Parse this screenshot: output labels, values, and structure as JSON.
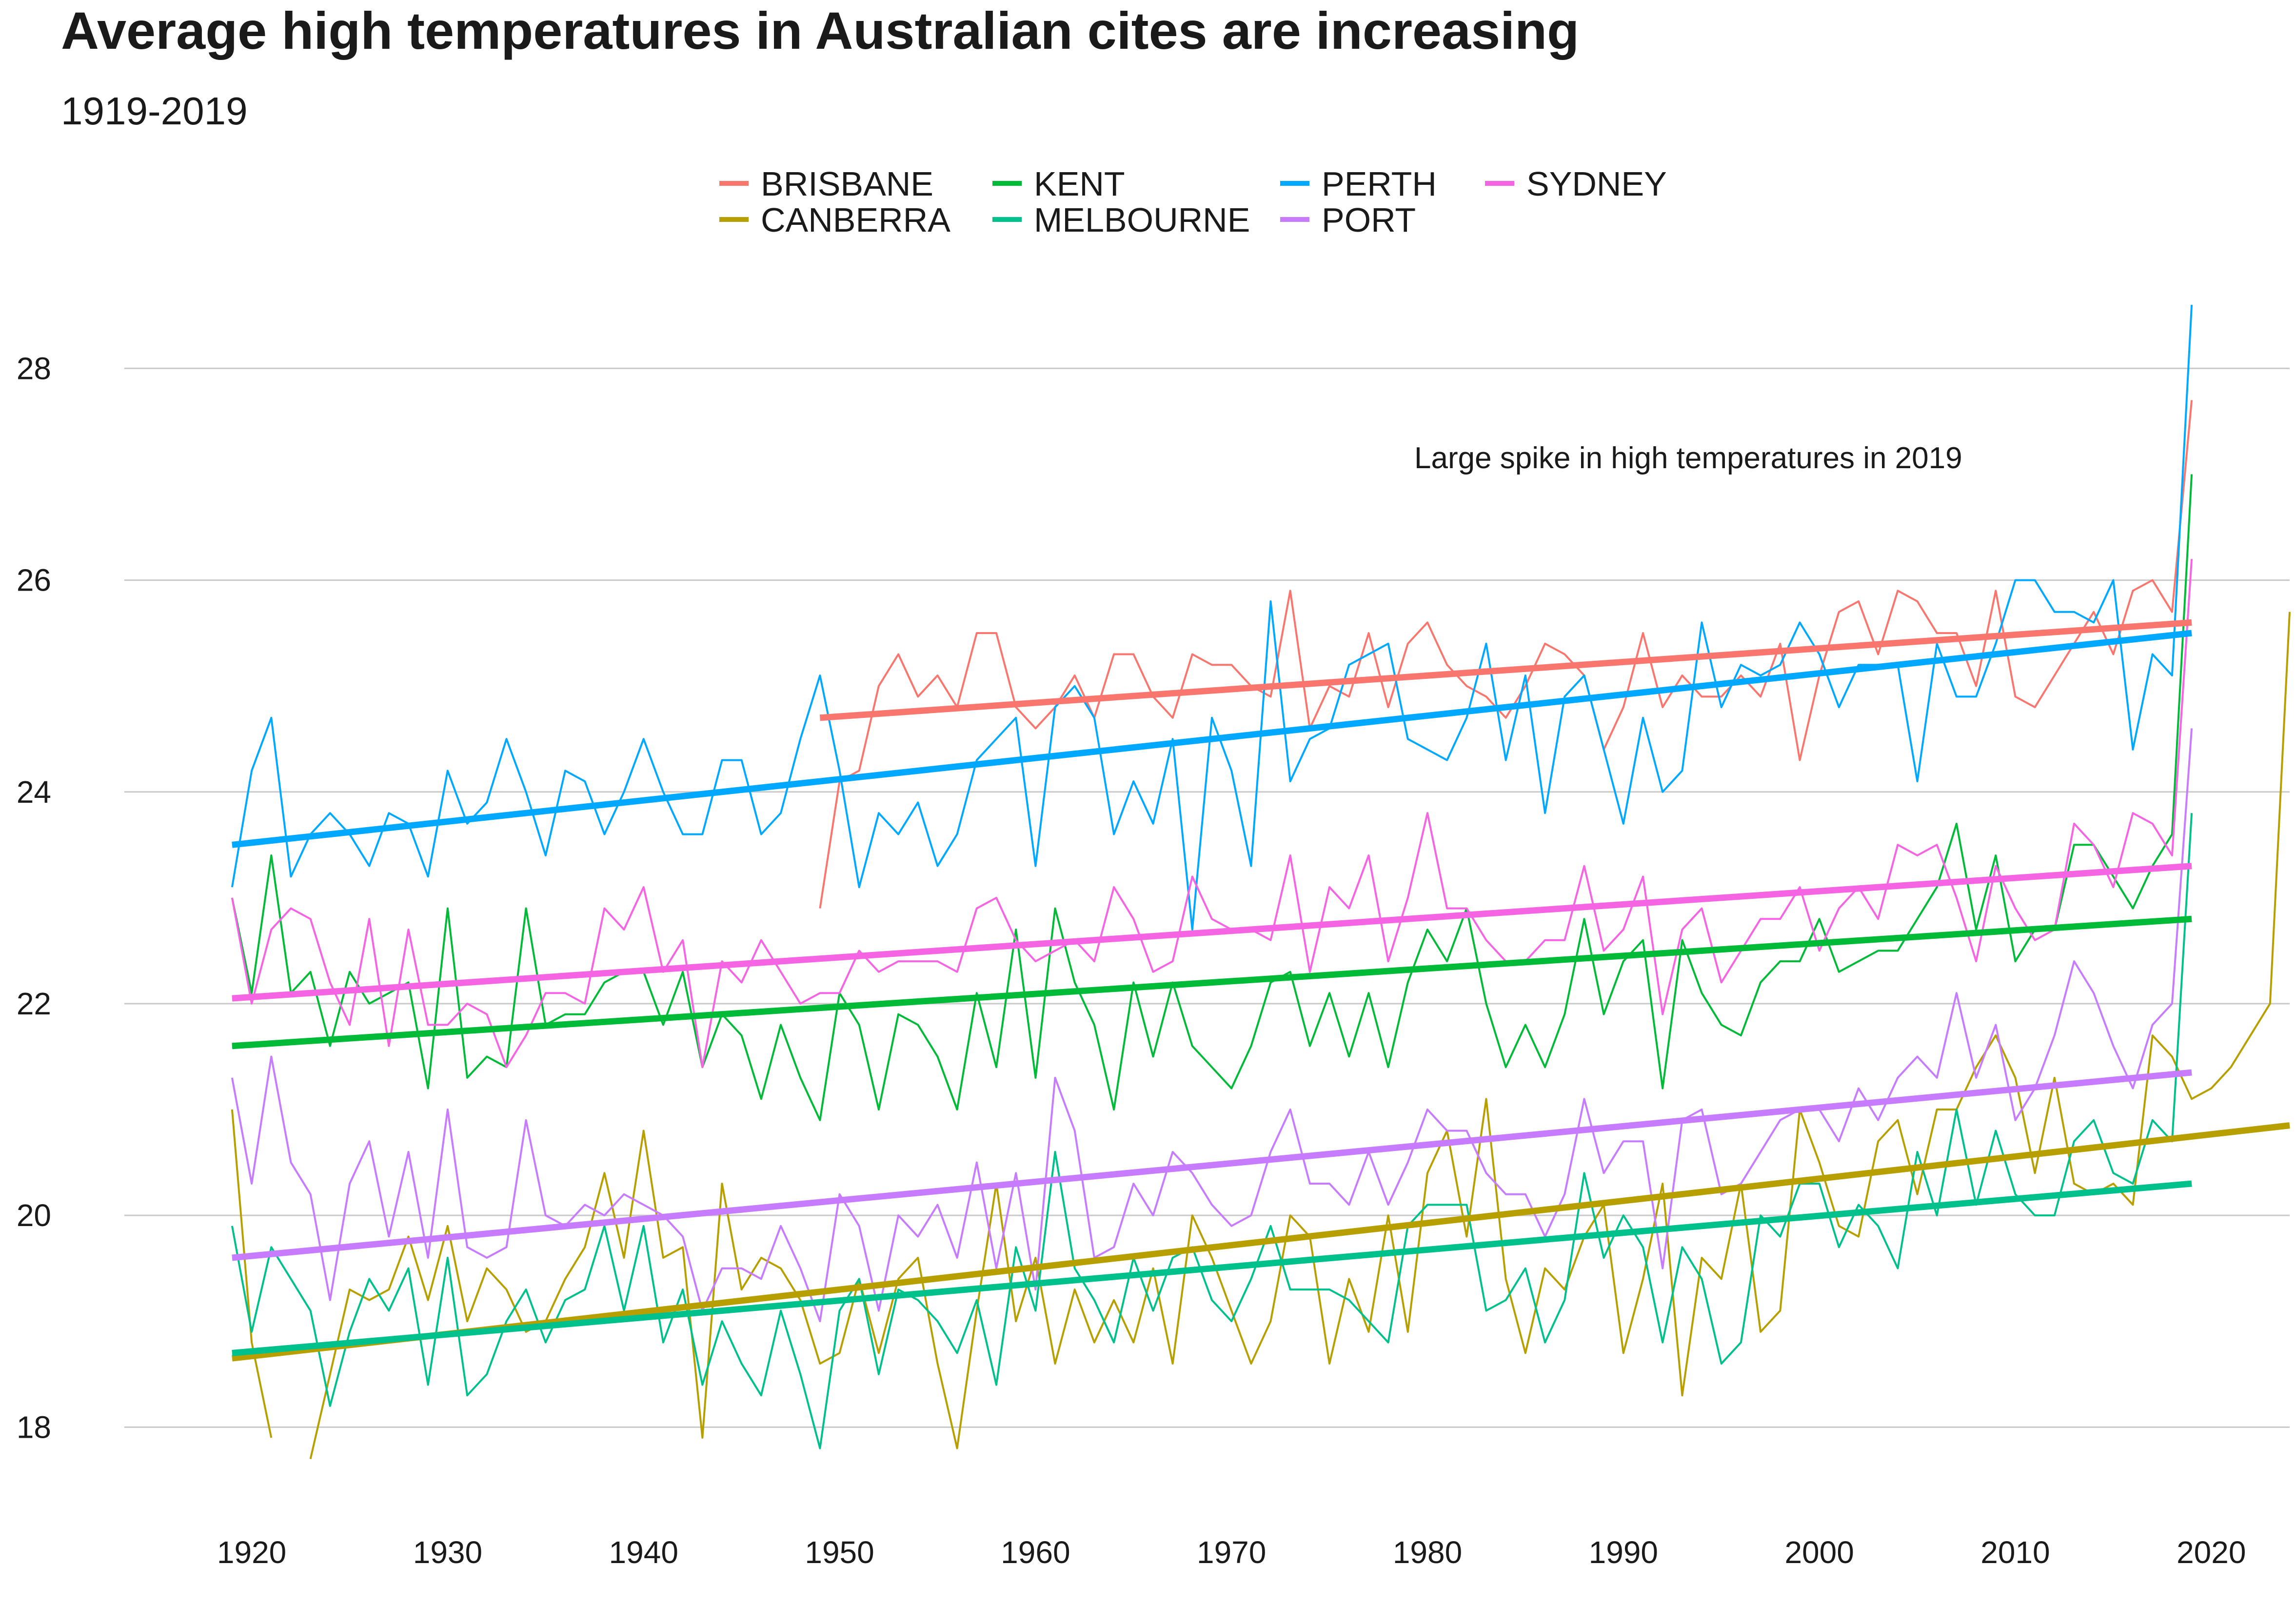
{
  "chart_data": {
    "type": "line",
    "title": "Average high temperatures in Australian cites are increasing",
    "subtitle": "1919-2019",
    "xlabel": "",
    "ylabel": "",
    "xlim": [
      1914,
      2024
    ],
    "ylim": [
      17.2,
      28.9
    ],
    "x_ticks": [
      1920,
      1930,
      1940,
      1950,
      1960,
      1970,
      1980,
      1990,
      2000,
      2010,
      2020
    ],
    "y_ticks": [
      18,
      20,
      22,
      24,
      26,
      28
    ],
    "grid": "horizontal",
    "legend_position": "top",
    "annotation": "Large spike in high temperatures in 2019",
    "series": [
      {
        "name": "BRISBANE",
        "color": "#F8766D",
        "start_year": 1949,
        "values": [
          22.9,
          24.1,
          24.2,
          25.0,
          25.3,
          24.9,
          25.1,
          24.8,
          25.5,
          25.5,
          24.8,
          24.6,
          24.8,
          25.1,
          24.7,
          25.3,
          25.3,
          24.9,
          24.7,
          25.3,
          25.2,
          25.2,
          25.0,
          24.9,
          25.9,
          24.6,
          25.0,
          24.9,
          25.5,
          24.8,
          25.4,
          25.6,
          25.2,
          25.0,
          24.9,
          24.7,
          25.0,
          25.4,
          25.3,
          25.1,
          24.4,
          24.8,
          25.5,
          24.8,
          25.1,
          24.9,
          24.9,
          25.1,
          24.9,
          25.4,
          24.3,
          25.1,
          25.7,
          25.8,
          25.3,
          25.9,
          25.8,
          25.5,
          25.5,
          25.0,
          25.9,
          24.9,
          24.8,
          25.1,
          25.4,
          25.7,
          25.3,
          25.9,
          26.0,
          25.7,
          27.7
        ],
        "trend": [
          24.7,
          25.6
        ]
      },
      {
        "name": "CANBERRA",
        "color": "#B79F00",
        "start_year": 1919,
        "values": [
          21.0,
          18.8,
          17.9,
          null,
          17.7,
          18.5,
          19.3,
          19.2,
          19.3,
          19.8,
          19.2,
          19.9,
          19.0,
          19.5,
          19.3,
          18.9,
          19.0,
          19.4,
          19.7,
          20.4,
          19.6,
          20.8,
          19.6,
          19.7,
          17.9,
          20.3,
          19.3,
          19.6,
          19.5,
          19.2,
          18.6,
          18.7,
          19.4,
          18.7,
          19.4,
          19.6,
          18.6,
          17.8,
          19.1,
          20.3,
          19.0,
          19.6,
          18.6,
          19.3,
          18.8,
          19.2,
          18.8,
          19.5,
          18.6,
          20.0,
          19.6,
          19.1,
          18.6,
          19.0,
          20.0,
          19.8,
          18.6,
          19.4,
          18.9,
          20.0,
          18.9,
          20.4,
          20.8,
          19.8,
          21.1,
          19.4,
          18.7,
          19.5,
          19.3,
          19.8,
          20.1,
          18.7,
          19.4,
          20.3,
          18.3,
          19.6,
          19.4,
          20.3,
          18.9,
          19.1,
          21.0,
          20.5,
          19.9,
          19.8,
          20.7,
          20.9,
          20.2,
          21.0,
          21.0,
          21.4,
          21.7,
          21.3,
          20.4,
          21.3,
          20.3,
          20.2,
          20.3,
          20.1,
          21.7,
          21.5,
          21.1,
          21.2,
          21.4,
          21.7,
          22.0,
          25.7
        ],
        "trend": [
          18.65,
          20.85
        ]
      },
      {
        "name": "KENT",
        "color": "#00BA38",
        "start_year": 1919,
        "values": [
          23.0,
          22.1,
          23.4,
          22.1,
          22.3,
          21.6,
          22.3,
          22.0,
          22.1,
          22.2,
          21.2,
          22.9,
          21.3,
          21.5,
          21.4,
          22.9,
          21.8,
          21.9,
          21.9,
          22.2,
          22.3,
          22.3,
          21.8,
          22.3,
          21.4,
          21.9,
          21.7,
          21.1,
          21.8,
          21.3,
          20.9,
          22.1,
          21.8,
          21.0,
          21.9,
          21.8,
          21.5,
          21.0,
          22.1,
          21.4,
          22.7,
          21.3,
          22.9,
          22.2,
          21.8,
          21.0,
          22.2,
          21.5,
          22.2,
          21.6,
          21.4,
          21.2,
          21.6,
          22.2,
          22.3,
          21.6,
          22.1,
          21.5,
          22.1,
          21.4,
          22.2,
          22.7,
          22.4,
          22.9,
          22.0,
          21.4,
          21.8,
          21.4,
          21.9,
          22.8,
          21.9,
          22.4,
          22.6,
          21.2,
          22.6,
          22.1,
          21.8,
          21.7,
          22.2,
          22.4,
          22.4,
          22.8,
          22.3,
          22.4,
          22.5,
          22.5,
          22.8,
          23.1,
          23.7,
          22.7,
          23.4,
          22.4,
          22.7,
          22.7,
          23.5,
          23.5,
          23.2,
          22.9,
          23.3,
          23.6,
          27.0
        ],
        "trend": [
          21.6,
          22.8
        ]
      },
      {
        "name": "MELBOURNE",
        "color": "#00C08B",
        "start_year": 1919,
        "values": [
          19.9,
          18.9,
          19.7,
          19.4,
          19.1,
          18.2,
          18.9,
          19.4,
          19.1,
          19.5,
          18.4,
          19.6,
          18.3,
          18.5,
          19.0,
          19.3,
          18.8,
          19.2,
          19.3,
          19.9,
          19.1,
          19.9,
          18.8,
          19.3,
          18.4,
          19.0,
          18.6,
          18.3,
          19.1,
          18.5,
          17.8,
          19.1,
          19.4,
          18.5,
          19.3,
          19.2,
          19.0,
          18.7,
          19.2,
          18.4,
          19.7,
          19.1,
          20.6,
          19.5,
          19.2,
          18.8,
          19.6,
          19.1,
          19.6,
          19.7,
          19.2,
          19.0,
          19.4,
          19.9,
          19.3,
          19.3,
          19.3,
          19.2,
          19.0,
          18.8,
          19.9,
          20.1,
          20.1,
          20.1,
          19.1,
          19.2,
          19.5,
          18.8,
          19.2,
          20.4,
          19.6,
          20.0,
          19.7,
          18.8,
          19.7,
          19.4,
          18.6,
          18.8,
          20.0,
          19.8,
          20.3,
          20.3,
          19.7,
          20.1,
          19.9,
          19.5,
          20.6,
          20.0,
          21.0,
          20.1,
          20.8,
          20.2,
          20.0,
          20.0,
          20.7,
          20.9,
          20.4,
          20.3,
          20.9,
          20.7,
          23.8
        ],
        "trend": [
          18.7,
          20.3
        ]
      },
      {
        "name": "PERTH",
        "color": "#00A9FF",
        "start_year": 1919,
        "values": [
          23.1,
          24.2,
          24.7,
          23.2,
          23.6,
          23.8,
          23.6,
          23.3,
          23.8,
          23.7,
          23.2,
          24.2,
          23.7,
          23.9,
          24.5,
          24.0,
          23.4,
          24.2,
          24.1,
          23.6,
          24.0,
          24.5,
          24.0,
          23.6,
          23.6,
          24.3,
          24.3,
          23.6,
          23.8,
          24.5,
          25.1,
          24.2,
          23.1,
          23.8,
          23.6,
          23.9,
          23.3,
          23.6,
          24.3,
          24.5,
          24.7,
          23.3,
          24.8,
          25.0,
          24.7,
          23.6,
          24.1,
          23.7,
          24.5,
          22.7,
          24.7,
          24.2,
          23.3,
          25.8,
          24.1,
          24.5,
          24.6,
          25.2,
          25.3,
          25.4,
          24.5,
          24.4,
          24.3,
          24.7,
          25.4,
          24.3,
          25.1,
          23.8,
          24.9,
          25.1,
          24.4,
          23.7,
          24.7,
          24.0,
          24.2,
          25.6,
          24.8,
          25.2,
          25.1,
          25.2,
          25.6,
          25.3,
          24.8,
          25.2,
          25.2,
          25.2,
          24.1,
          25.4,
          24.9,
          24.9,
          25.4,
          26.0,
          26.0,
          25.7,
          25.7,
          25.6,
          26.0,
          24.4,
          25.3,
          25.1,
          28.6
        ],
        "trend": [
          23.5,
          25.5
        ]
      },
      {
        "name": "PORT",
        "color": "#C77CFF",
        "start_year": 1919,
        "values": [
          21.3,
          20.3,
          21.5,
          20.5,
          20.2,
          19.2,
          20.3,
          20.7,
          19.8,
          20.6,
          19.6,
          21.0,
          19.7,
          19.6,
          19.7,
          20.9,
          20.0,
          19.9,
          20.1,
          20.0,
          20.2,
          20.1,
          20.0,
          19.8,
          19.1,
          19.5,
          19.5,
          19.4,
          19.9,
          19.5,
          19.0,
          20.2,
          19.9,
          19.1,
          20.0,
          19.8,
          20.1,
          19.6,
          20.5,
          19.5,
          20.4,
          19.3,
          21.3,
          20.8,
          19.6,
          19.7,
          20.3,
          20.0,
          20.6,
          20.4,
          20.1,
          19.9,
          20.0,
          20.6,
          21.0,
          20.3,
          20.3,
          20.1,
          20.6,
          20.1,
          20.5,
          21.0,
          20.8,
          20.8,
          20.4,
          20.2,
          20.2,
          19.8,
          20.2,
          21.1,
          20.4,
          20.7,
          20.7,
          19.5,
          20.9,
          21.0,
          20.2,
          20.3,
          20.6,
          20.9,
          21.0,
          21.0,
          20.7,
          21.2,
          20.9,
          21.3,
          21.5,
          21.3,
          22.1,
          21.3,
          21.8,
          20.9,
          21.2,
          21.7,
          22.4,
          22.1,
          21.6,
          21.2,
          21.8,
          22.0,
          24.6
        ],
        "trend": [
          19.6,
          21.35
        ]
      },
      {
        "name": "SYDNEY",
        "color": "#F564E3",
        "start_year": 1919,
        "values": [
          23.0,
          22.0,
          22.7,
          22.9,
          22.8,
          22.2,
          21.8,
          22.8,
          21.6,
          22.7,
          21.8,
          21.8,
          22.0,
          21.9,
          21.4,
          21.7,
          22.1,
          22.1,
          22.0,
          22.9,
          22.7,
          23.1,
          22.3,
          22.6,
          21.4,
          22.4,
          22.2,
          22.6,
          22.3,
          22.0,
          22.1,
          22.1,
          22.5,
          22.3,
          22.4,
          22.4,
          22.4,
          22.3,
          22.9,
          23.0,
          22.6,
          22.4,
          22.5,
          22.6,
          22.4,
          23.1,
          22.8,
          22.3,
          22.4,
          23.2,
          22.8,
          22.7,
          22.7,
          22.6,
          23.4,
          22.3,
          23.1,
          22.9,
          23.4,
          22.4,
          23.0,
          23.8,
          22.9,
          22.9,
          22.6,
          22.4,
          22.4,
          22.6,
          22.6,
          23.3,
          22.5,
          22.7,
          23.2,
          21.9,
          22.7,
          22.9,
          22.2,
          22.5,
          22.8,
          22.8,
          23.1,
          22.5,
          22.9,
          23.1,
          22.8,
          23.5,
          23.4,
          23.5,
          23.0,
          22.4,
          23.3,
          22.9,
          22.6,
          22.7,
          23.7,
          23.5,
          23.1,
          23.8,
          23.7,
          23.4,
          26.2
        ],
        "trend": [
          22.05,
          23.3
        ]
      }
    ]
  }
}
